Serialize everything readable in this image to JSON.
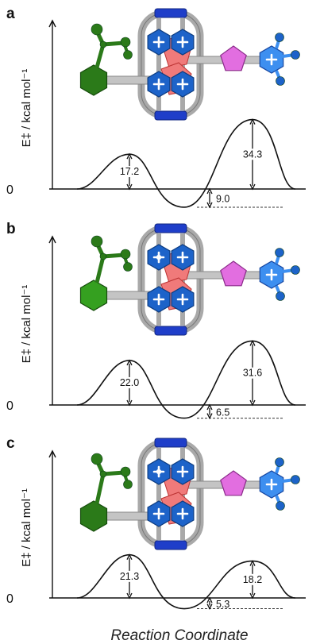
{
  "chart_data": [
    {
      "panel": "a",
      "type": "line",
      "ylabel": "E‡ / kcal mol⁻¹",
      "xlabel": "",
      "zero_label": "0",
      "barrier1": 17.2,
      "well": -9.0,
      "barrier2": 34.3,
      "labels": [
        "17.2",
        "9.0",
        "34.3"
      ]
    },
    {
      "panel": "b",
      "type": "line",
      "ylabel": "E‡ / kcal mol⁻¹",
      "xlabel": "",
      "zero_label": "0",
      "barrier1": 22.0,
      "well": -6.5,
      "barrier2": 31.6,
      "labels": [
        "22.0",
        "6.5",
        "31.6"
      ]
    },
    {
      "panel": "c",
      "type": "line",
      "ylabel": "E‡ / kcal mol⁻¹",
      "xlabel": "",
      "zero_label": "0",
      "barrier1": 21.3,
      "well": -5.3,
      "barrier2": 18.2,
      "labels": [
        "21.3",
        "5.3",
        "18.2"
      ]
    }
  ],
  "figure": {
    "xlabel": "Reaction Coordinate"
  },
  "colors": {
    "green": "#2e8b1e",
    "blue": "#1c6fd6",
    "blue_light": "#3d8ff0",
    "pink": "#f07a7a",
    "magenta": "#e26ee0",
    "gray": "#a9a9a9",
    "curve": "#111111"
  }
}
